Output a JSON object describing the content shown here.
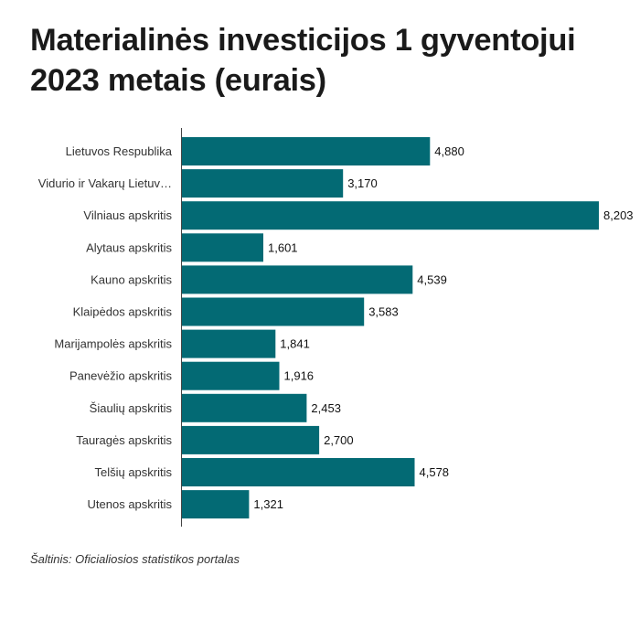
{
  "colors": {
    "bar": "#036a74",
    "axis": "#444444",
    "background": "#ffffff"
  },
  "chart_data": {
    "type": "bar",
    "orientation": "horizontal",
    "title": "Materialinės investicijos 1 gyventojui 2023 metais (eurais)",
    "xlabel": "",
    "ylabel": "",
    "grid": false,
    "xlim": [
      0,
      8203
    ],
    "categories": [
      "Lietuvos Respublika",
      "Vidurio ir Vakarų Lietuv…",
      "Vilniaus apskritis",
      "Alytaus apskritis",
      "Kauno apskritis",
      "Klaipėdos apskritis",
      "Marijampolės apskritis",
      "Panevėžio apskritis",
      "Šiaulių apskritis",
      "Tauragės apskritis",
      "Telšių apskritis",
      "Utenos apskritis"
    ],
    "values": [
      4880,
      3170,
      8203,
      1601,
      4539,
      3583,
      1841,
      1916,
      2453,
      2700,
      4578,
      1321
    ],
    "value_labels": [
      "4,880",
      "3,170",
      "8,203",
      "1,601",
      "4,539",
      "3,583",
      "1,841",
      "1,916",
      "2,453",
      "2,700",
      "4,578",
      "1,321"
    ]
  },
  "source": "Šaltinis: Oficialiosios statistikos portalas"
}
